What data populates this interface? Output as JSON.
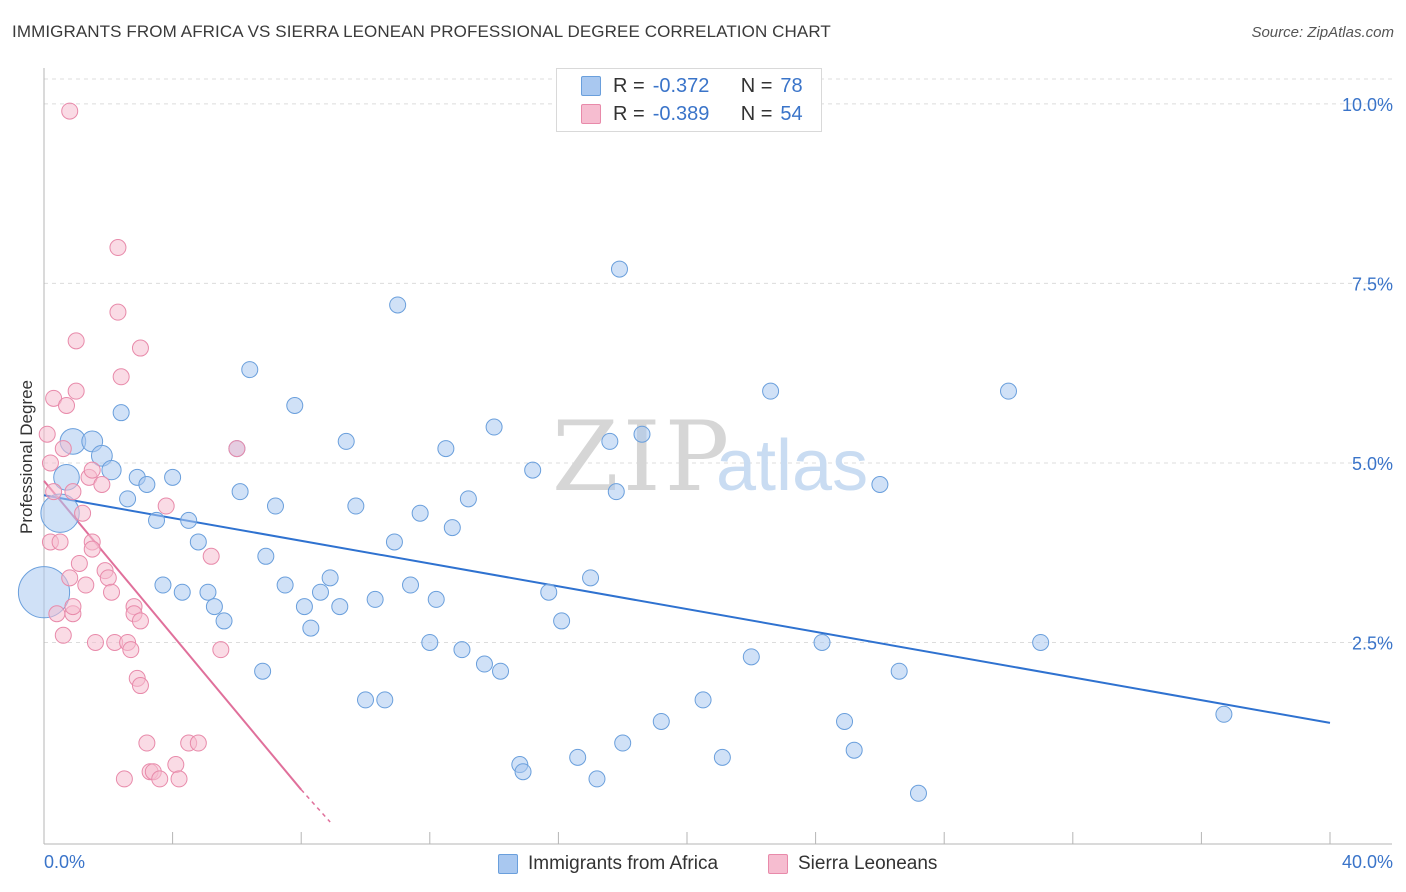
{
  "title": "IMMIGRANTS FROM AFRICA VS SIERRA LEONEAN PROFESSIONAL DEGREE CORRELATION CHART",
  "source": "Source: ZipAtlas.com",
  "watermark": {
    "zip": "ZIP",
    "atlas": "atlas"
  },
  "legend_stats": [
    {
      "r_label": "R =",
      "r_value": "-0.372",
      "n_label": "N =",
      "n_value": "78",
      "color": "#a9c8f0",
      "stroke": "#6a9fdc"
    },
    {
      "r_label": "R =",
      "r_value": "-0.389",
      "n_label": "N =",
      "n_value": "54",
      "color": "#f6bdd0",
      "stroke": "#e88aaa"
    }
  ],
  "bottom_legend": [
    {
      "label": "Immigrants from Africa",
      "color": "#a9c8f0",
      "stroke": "#6a9fdc"
    },
    {
      "label": "Sierra Leoneans",
      "color": "#f6bdd0",
      "stroke": "#e88aaa"
    }
  ],
  "chart_data": {
    "type": "scatter",
    "title": "IMMIGRANTS FROM AFRICA VS SIERRA LEONEAN PROFESSIONAL DEGREE CORRELATION CHART",
    "xlabel": "",
    "ylabel": "Professional Degree",
    "xlim": [
      0,
      40
    ],
    "ylim": [
      0,
      10.5
    ],
    "x_tick_labels": [
      "0.0%",
      "40.0%"
    ],
    "y_ticks": [
      2.5,
      5.0,
      7.5,
      10.0
    ],
    "y_tick_labels": [
      "2.5%",
      "5.0%",
      "7.5%",
      "10.0%"
    ],
    "grid": true,
    "series": [
      {
        "name": "Immigrants from Africa",
        "color": "#6a9fdc",
        "fill": "#a9c8f0",
        "trend": {
          "x": [
            0.0,
            40.0
          ],
          "y": [
            4.55,
            1.38
          ],
          "color": "#2f72d0"
        },
        "points": [
          [
            0.0,
            3.2,
            3.2
          ],
          [
            0.5,
            4.3,
            2.4
          ],
          [
            0.7,
            4.8,
            1.6
          ],
          [
            0.9,
            5.3,
            1.6
          ],
          [
            1.5,
            5.3,
            1.3
          ],
          [
            1.8,
            5.1,
            1.3
          ],
          [
            2.1,
            4.9,
            1.2
          ],
          [
            2.4,
            5.7,
            1.0
          ],
          [
            2.6,
            4.5,
            1.0
          ],
          [
            2.9,
            4.8,
            1.0
          ],
          [
            3.2,
            4.7,
            1.0
          ],
          [
            3.5,
            4.2,
            1.0
          ],
          [
            3.7,
            3.3,
            1.0
          ],
          [
            4.0,
            4.8,
            1.0
          ],
          [
            4.3,
            3.2,
            1.0
          ],
          [
            4.5,
            4.2,
            1.0
          ],
          [
            4.8,
            3.9,
            1.0
          ],
          [
            5.1,
            3.2,
            1.0
          ],
          [
            5.3,
            3.0,
            1.0
          ],
          [
            5.6,
            2.8,
            1.0
          ],
          [
            6.0,
            5.2,
            1.0
          ],
          [
            6.1,
            4.6,
            1.0
          ],
          [
            6.4,
            6.3,
            1.0
          ],
          [
            6.8,
            2.1,
            1.0
          ],
          [
            6.9,
            3.7,
            1.0
          ],
          [
            7.2,
            4.4,
            1.0
          ],
          [
            7.5,
            3.3,
            1.0
          ],
          [
            7.8,
            5.8,
            1.0
          ],
          [
            8.1,
            3.0,
            1.0
          ],
          [
            8.3,
            2.7,
            1.0
          ],
          [
            8.6,
            3.2,
            1.0
          ],
          [
            8.9,
            3.4,
            1.0
          ],
          [
            9.2,
            3.0,
            1.0
          ],
          [
            9.4,
            5.3,
            1.0
          ],
          [
            9.7,
            4.4,
            1.0
          ],
          [
            10.0,
            1.7,
            1.0
          ],
          [
            10.3,
            3.1,
            1.0
          ],
          [
            10.6,
            1.7,
            1.0
          ],
          [
            10.9,
            3.9,
            1.0
          ],
          [
            11.0,
            7.2,
            1.0
          ],
          [
            11.4,
            3.3,
            1.0
          ],
          [
            11.7,
            4.3,
            1.0
          ],
          [
            12.0,
            2.5,
            1.0
          ],
          [
            12.2,
            3.1,
            1.0
          ],
          [
            12.5,
            5.2,
            1.0
          ],
          [
            12.7,
            4.1,
            1.0
          ],
          [
            13.0,
            2.4,
            1.0
          ],
          [
            13.2,
            4.5,
            1.0
          ],
          [
            13.7,
            2.2,
            1.0
          ],
          [
            14.0,
            5.5,
            1.0
          ],
          [
            14.2,
            2.1,
            1.0
          ],
          [
            14.8,
            0.8,
            1.0
          ],
          [
            14.9,
            0.7,
            1.0
          ],
          [
            15.2,
            4.9,
            1.0
          ],
          [
            15.7,
            3.2,
            1.0
          ],
          [
            16.1,
            2.8,
            1.0
          ],
          [
            16.6,
            0.9,
            1.0
          ],
          [
            17.0,
            3.4,
            1.0
          ],
          [
            17.2,
            0.6,
            1.0
          ],
          [
            17.6,
            5.3,
            1.0
          ],
          [
            17.8,
            4.6,
            1.0
          ],
          [
            17.9,
            7.7,
            1.0
          ],
          [
            18.0,
            1.1,
            1.0
          ],
          [
            18.6,
            5.4,
            1.0
          ],
          [
            19.2,
            1.4,
            1.0
          ],
          [
            20.5,
            1.7,
            1.0
          ],
          [
            21.1,
            0.9,
            1.0
          ],
          [
            22.0,
            2.3,
            1.0
          ],
          [
            22.6,
            6.0,
            1.0
          ],
          [
            24.2,
            2.5,
            1.0
          ],
          [
            24.9,
            1.4,
            1.0
          ],
          [
            25.2,
            1.0,
            1.0
          ],
          [
            26.0,
            4.7,
            1.0
          ],
          [
            26.6,
            2.1,
            1.0
          ],
          [
            27.2,
            0.4,
            1.0
          ],
          [
            30.0,
            6.0,
            1.0
          ],
          [
            31.0,
            2.5,
            1.0
          ],
          [
            36.7,
            1.5,
            1.0
          ]
        ]
      },
      {
        "name": "Sierra Leoneans",
        "color": "#e88aaa",
        "fill": "#f6bdd0",
        "trend": {
          "x": [
            0.0,
            8.0
          ],
          "y": [
            4.75,
            0.45
          ],
          "color": "#e0709b",
          "dashed_to": [
            8.9,
            0.0
          ]
        },
        "points": [
          [
            0.1,
            5.4,
            1.0
          ],
          [
            0.2,
            5.0,
            1.0
          ],
          [
            0.2,
            3.9,
            1.0
          ],
          [
            0.3,
            4.6,
            1.0
          ],
          [
            0.3,
            5.9,
            1.0
          ],
          [
            0.4,
            2.9,
            1.0
          ],
          [
            0.5,
            3.9,
            1.0
          ],
          [
            0.6,
            5.2,
            1.0
          ],
          [
            0.6,
            2.6,
            1.0
          ],
          [
            0.7,
            5.8,
            1.0
          ],
          [
            0.8,
            9.9,
            1.0
          ],
          [
            0.8,
            3.4,
            1.0
          ],
          [
            0.9,
            2.9,
            1.0
          ],
          [
            0.9,
            4.6,
            1.0
          ],
          [
            0.9,
            3.0,
            1.0
          ],
          [
            1.0,
            6.0,
            1.0
          ],
          [
            1.0,
            6.7,
            1.0
          ],
          [
            1.1,
            3.6,
            1.0
          ],
          [
            1.2,
            4.3,
            1.0
          ],
          [
            1.3,
            3.3,
            1.0
          ],
          [
            1.4,
            4.8,
            1.0
          ],
          [
            1.5,
            3.9,
            1.0
          ],
          [
            1.5,
            3.8,
            1.0
          ],
          [
            1.6,
            2.5,
            1.0
          ],
          [
            1.8,
            4.7,
            1.0
          ],
          [
            1.9,
            3.5,
            1.0
          ],
          [
            2.0,
            3.4,
            1.0
          ],
          [
            2.1,
            3.2,
            1.0
          ],
          [
            2.2,
            2.5,
            1.0
          ],
          [
            2.3,
            8.0,
            1.0
          ],
          [
            2.3,
            7.1,
            1.0
          ],
          [
            2.4,
            6.2,
            1.0
          ],
          [
            2.5,
            0.6,
            1.0
          ],
          [
            2.6,
            2.5,
            1.0
          ],
          [
            2.8,
            3.0,
            1.0
          ],
          [
            2.8,
            2.9,
            1.0
          ],
          [
            2.9,
            2.0,
            1.0
          ],
          [
            3.0,
            1.9,
            1.0
          ],
          [
            3.0,
            2.8,
            1.0
          ],
          [
            3.2,
            1.1,
            1.0
          ],
          [
            3.3,
            0.7,
            1.0
          ],
          [
            3.4,
            0.7,
            1.0
          ],
          [
            3.6,
            0.6,
            1.0
          ],
          [
            3.8,
            4.4,
            1.0
          ],
          [
            4.1,
            0.8,
            1.0
          ],
          [
            4.2,
            0.6,
            1.0
          ],
          [
            4.5,
            1.1,
            1.0
          ],
          [
            4.8,
            1.1,
            1.0
          ],
          [
            5.2,
            3.7,
            1.0
          ],
          [
            5.5,
            2.4,
            1.0
          ],
          [
            6.0,
            5.2,
            1.0
          ],
          [
            1.5,
            4.9,
            1.0
          ],
          [
            2.7,
            2.4,
            1.0
          ],
          [
            3.0,
            6.6,
            1.0
          ]
        ]
      }
    ]
  }
}
